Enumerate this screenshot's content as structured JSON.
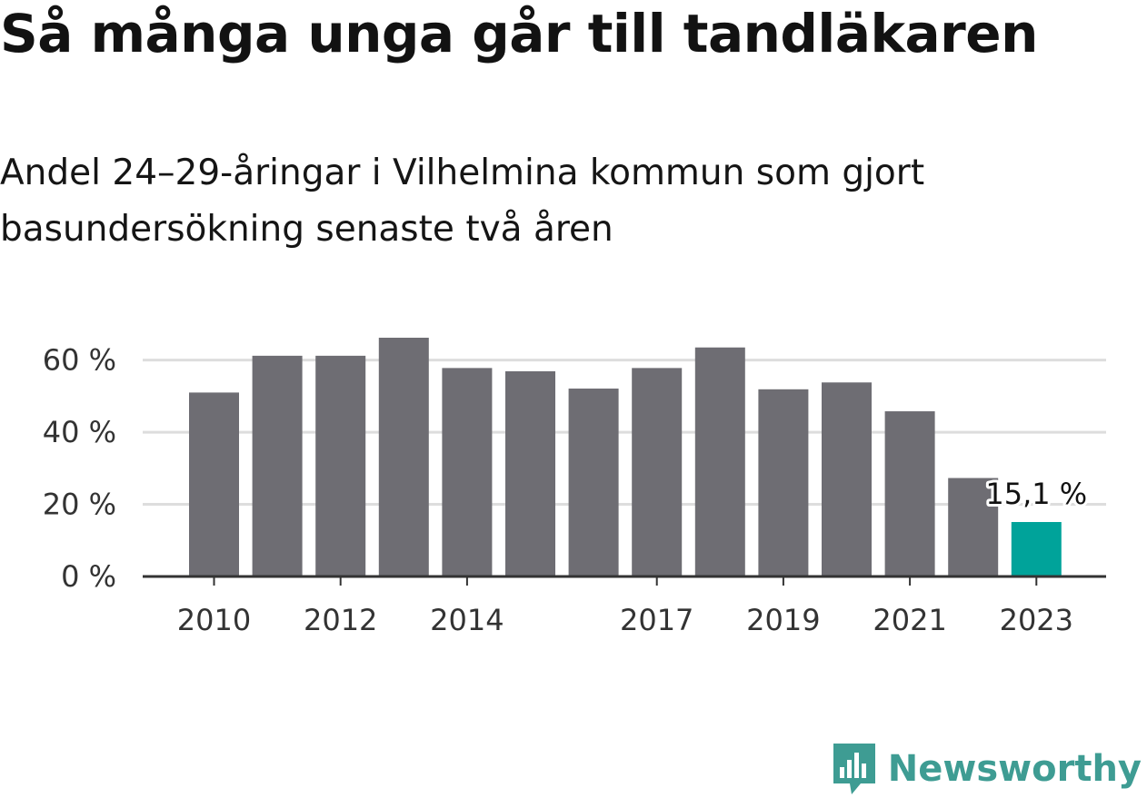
{
  "title": "Så många unga går till tandläkaren",
  "subtitle": "Andel 24–29-åringar i Vilhelmina kommun som gjort basundersökning senaste två åren",
  "brand": {
    "name": "Newsworthy",
    "icon": "newsworthy-logo-icon",
    "color": "#3e9c93"
  },
  "colors": {
    "bar": "#6e6d73",
    "highlight": "#00a39a",
    "grid": "#dddddd",
    "axis": "#333333"
  },
  "chart_data": {
    "type": "bar",
    "categories": [
      "2010",
      "2011",
      "2012",
      "2013",
      "2014",
      "2015",
      "2016",
      "2017",
      "2018",
      "2019",
      "2020",
      "2021",
      "2022",
      "2023"
    ],
    "x_tick_labels": [
      "2010",
      "2012",
      "2014",
      "2017",
      "2019",
      "2021",
      "2023"
    ],
    "values": [
      51,
      61.2,
      61.2,
      66.2,
      57.8,
      56.9,
      52.1,
      57.8,
      63.5,
      51.9,
      53.8,
      45.8,
      27.3,
      15.1
    ],
    "highlight_index": 13,
    "data_labels": [
      {
        "category": "2023",
        "text": "15,1 %"
      }
    ],
    "y_ticks": [
      0,
      20,
      40,
      60
    ],
    "y_tick_labels": [
      "0 %",
      "20 %",
      "40 %",
      "60 %"
    ],
    "ylim": [
      0,
      66.2
    ],
    "grid": true,
    "xlabel": "",
    "ylabel": ""
  }
}
